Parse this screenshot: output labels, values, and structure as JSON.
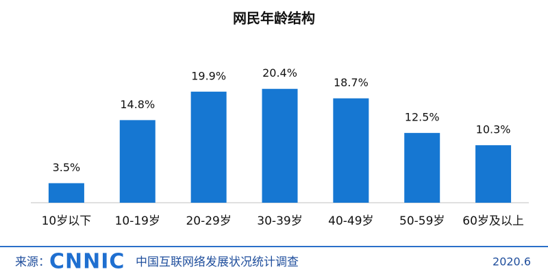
{
  "chart_data": {
    "type": "bar",
    "title": "网民年龄结构",
    "categories": [
      "10岁以下",
      "10-19岁",
      "20-29岁",
      "30-39岁",
      "40-49岁",
      "50-59岁",
      "60岁及以上"
    ],
    "values": [
      3.5,
      14.8,
      19.9,
      20.4,
      18.7,
      12.5,
      10.3
    ],
    "value_labels": [
      "3.5%",
      "14.8%",
      "19.9%",
      "20.4%",
      "18.7%",
      "12.5%",
      "10.3%"
    ],
    "color": "#1677d2"
  },
  "footer": {
    "source_label": "来源：",
    "logo": "CNNIC",
    "text": "中国互联网络发展状况统计调查",
    "date": "2020.6"
  }
}
